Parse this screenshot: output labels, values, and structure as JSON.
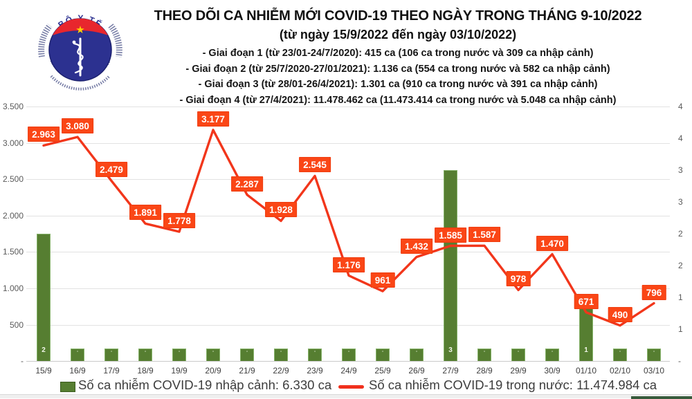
{
  "header": {
    "title": "THEO DÕI CA NHIỄM MỚI COVID-19 THEO NGÀY TRONG THÁNG 9-10/2022",
    "subtitle": "(từ ngày 15/9/2022 đến ngày 03/10/2022)",
    "notes": [
      "- Giai đoạn 1 (từ 23/01-24/7/2020): 415 ca (106 ca trong nước và 309 ca nhập cảnh)",
      "- Giai đoạn 2 (từ 25/7/2020-27/01/2021): 1.136 ca (554 ca trong nước và 582 ca nhập cảnh)",
      "- Giai đoạn 3 (từ 28/01-26/4/2021): 1.301 ca (910 ca trong nước và 391 ca nhập cảnh)",
      "- Giai đoạn 4 (từ 27/4/2021): 11.478.462 ca (11.473.414 ca trong nước và 5.048 ca nhập cảnh)"
    ],
    "logo": {
      "top_text": "BỘ Y TẾ",
      "bottom_text": "MINISTRY OF HEALTH"
    }
  },
  "chart_data": {
    "type": "bar",
    "subtype": "combo bar+line, dual axis",
    "title": "THEO DÕI CA NHIỄM MỚI COVID-19 THEO NGÀY TRONG THÁNG 9-10/2022",
    "categories": [
      "15/9",
      "16/9",
      "17/9",
      "18/9",
      "19/9",
      "20/9",
      "21/9",
      "22/9",
      "23/9",
      "24/9",
      "25/9",
      "26/9",
      "27/9",
      "28/9",
      "29/9",
      "30/9",
      "01/10",
      "02/10",
      "03/10"
    ],
    "series": [
      {
        "name": "Số ca nhiễm COVID-19 nhập cảnh",
        "type": "bar",
        "color": "#567e31",
        "values": [
          1750,
          170,
          170,
          170,
          170,
          170,
          170,
          170,
          170,
          170,
          170,
          170,
          2630,
          170,
          170,
          170,
          730,
          170,
          170
        ],
        "labels": [
          "2",
          "-",
          "-",
          "-",
          "-",
          "-",
          "-",
          "-",
          "-",
          "-",
          "-",
          "-",
          "3",
          "-",
          "-",
          "-",
          "1",
          "-",
          "-"
        ]
      },
      {
        "name": "Số ca nhiễm COVID-19 trong nước",
        "type": "line",
        "color": "#f2361b",
        "values": [
          2963,
          3080,
          2479,
          1891,
          1778,
          3177,
          2287,
          1928,
          2545,
          1176,
          961,
          1432,
          1585,
          1587,
          978,
          1470,
          671,
          490,
          796
        ],
        "labels": [
          "2.963",
          "3.080",
          "2.479",
          "1.891",
          "1.778",
          "3.177",
          "2.287",
          "1.928",
          "2.545",
          "1.176",
          "961",
          "1.432",
          "1.585",
          "1.587",
          "978",
          "1.470",
          "671",
          "490",
          "796"
        ]
      }
    ],
    "left_axis": {
      "ticks": [
        "3.500",
        "3.000",
        "2.500",
        "2.000",
        "1.500",
        "1.000",
        "500",
        "-"
      ],
      "min": 0,
      "max": 3500,
      "step": 500
    },
    "right_axis": {
      "ticks": [
        "4",
        "4",
        "3",
        "3",
        "2",
        "2",
        "1",
        "1",
        "-"
      ]
    },
    "grid": true,
    "legend_position": "bottom",
    "label_box_color": "#fa4616"
  },
  "legend": {
    "bar_label": "Số ca nhiễm COVID-19 nhập cảnh: 6.330 ca",
    "line_label": "Số ca nhiễm COVID-19 trong nước: 11.474.984 ca"
  }
}
